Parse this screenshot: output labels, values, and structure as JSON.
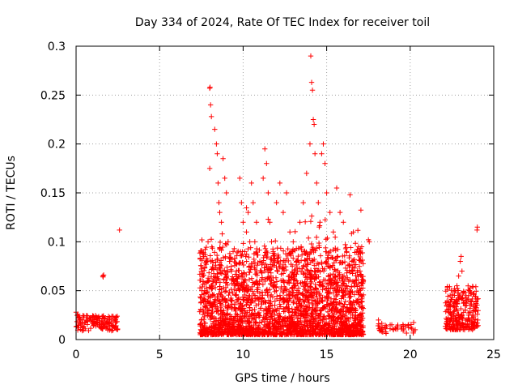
{
  "chart_data": {
    "type": "scatter",
    "title": "Day 334 of 2024, Rate Of TEC Index for receiver toil",
    "xlabel": "GPS time / hours",
    "ylabel": "ROTI / TECUs",
    "xlim": [
      0,
      25
    ],
    "ylim": [
      0,
      0.3
    ],
    "grid": true,
    "marker": "+",
    "xticks": [
      0,
      5,
      10,
      15,
      20,
      25
    ],
    "xtick_labels": [
      "0",
      "5",
      "10",
      "15",
      "20",
      "25"
    ],
    "yticks": [
      0,
      0.05,
      0.1,
      0.15,
      0.2,
      0.25,
      0.3
    ],
    "ytick_labels": [
      "0",
      "0.05",
      "0.1",
      "0.15",
      "0.2",
      "0.25",
      "0.3"
    ],
    "series": [
      {
        "name": "ROTI",
        "color": "#ff0000",
        "points": [
          [
            0.0,
            0.028
          ],
          [
            0.1,
            0.026
          ],
          [
            0.15,
            0.022
          ],
          [
            0.2,
            0.018
          ],
          [
            0.3,
            0.015
          ],
          [
            0.4,
            0.012
          ],
          [
            0.5,
            0.017
          ],
          [
            0.6,
            0.02
          ],
          [
            0.7,
            0.019
          ],
          [
            0.8,
            0.022
          ],
          [
            0.9,
            0.02
          ],
          [
            1.0,
            0.018
          ],
          [
            1.1,
            0.016
          ],
          [
            1.2,
            0.021
          ],
          [
            1.3,
            0.015
          ],
          [
            1.4,
            0.013
          ],
          [
            1.5,
            0.012
          ],
          [
            1.6,
            0.016
          ],
          [
            1.7,
            0.013
          ],
          [
            1.8,
            0.012
          ],
          [
            1.9,
            0.011
          ],
          [
            2.0,
            0.014
          ],
          [
            2.1,
            0.016
          ],
          [
            2.2,
            0.013
          ],
          [
            2.3,
            0.012
          ],
          [
            2.4,
            0.018
          ],
          [
            0.35,
            0.02
          ],
          [
            0.55,
            0.011
          ],
          [
            1.05,
            0.024
          ],
          [
            1.25,
            0.017
          ],
          [
            1.6,
            0.065
          ],
          [
            1.65,
            0.066
          ],
          [
            1.62,
            0.064
          ],
          [
            2.6,
            0.112
          ],
          [
            7.5,
            0.02
          ],
          [
            7.6,
            0.03
          ],
          [
            7.7,
            0.05
          ],
          [
            7.8,
            0.08
          ],
          [
            7.9,
            0.1
          ],
          [
            8.0,
            0.257
          ],
          [
            8.02,
            0.258
          ],
          [
            8.05,
            0.24
          ],
          [
            8.1,
            0.228
          ],
          [
            8.0,
            0.175
          ],
          [
            8.3,
            0.215
          ],
          [
            8.4,
            0.2
          ],
          [
            8.45,
            0.19
          ],
          [
            8.5,
            0.16
          ],
          [
            8.55,
            0.14
          ],
          [
            8.6,
            0.13
          ],
          [
            8.7,
            0.12
          ],
          [
            8.8,
            0.185
          ],
          [
            8.9,
            0.165
          ],
          [
            9.0,
            0.15
          ],
          [
            9.1,
            0.1
          ],
          [
            9.2,
            0.08
          ],
          [
            9.3,
            0.07
          ],
          [
            9.4,
            0.09
          ],
          [
            9.5,
            0.06
          ],
          [
            9.6,
            0.05
          ],
          [
            9.8,
            0.165
          ],
          [
            9.9,
            0.14
          ],
          [
            10.0,
            0.12
          ],
          [
            10.1,
            0.09
          ],
          [
            10.2,
            0.11
          ],
          [
            10.3,
            0.13
          ],
          [
            10.4,
            0.1
          ],
          [
            10.5,
            0.16
          ],
          [
            10.6,
            0.14
          ],
          [
            10.7,
            0.1
          ],
          [
            10.8,
            0.12
          ],
          [
            11.0,
            0.08
          ],
          [
            11.2,
            0.165
          ],
          [
            11.3,
            0.195
          ],
          [
            11.4,
            0.18
          ],
          [
            11.5,
            0.15
          ],
          [
            11.6,
            0.12
          ],
          [
            11.7,
            0.1
          ],
          [
            11.8,
            0.09
          ],
          [
            12.0,
            0.14
          ],
          [
            12.2,
            0.16
          ],
          [
            12.4,
            0.13
          ],
          [
            12.6,
            0.15
          ],
          [
            12.8,
            0.11
          ],
          [
            13.0,
            0.1
          ],
          [
            13.2,
            0.08
          ],
          [
            13.4,
            0.12
          ],
          [
            13.6,
            0.14
          ],
          [
            13.8,
            0.17
          ],
          [
            14.0,
            0.2
          ],
          [
            14.05,
            0.29
          ],
          [
            14.1,
            0.263
          ],
          [
            14.15,
            0.255
          ],
          [
            14.2,
            0.225
          ],
          [
            14.25,
            0.22
          ],
          [
            14.3,
            0.19
          ],
          [
            14.4,
            0.16
          ],
          [
            14.5,
            0.14
          ],
          [
            14.6,
            0.12
          ],
          [
            14.7,
            0.19
          ],
          [
            14.8,
            0.2
          ],
          [
            14.9,
            0.18
          ],
          [
            15.0,
            0.15
          ],
          [
            15.2,
            0.13
          ],
          [
            15.4,
            0.11
          ],
          [
            15.6,
            0.155
          ],
          [
            15.8,
            0.13
          ],
          [
            16.0,
            0.12
          ],
          [
            16.2,
            0.09
          ],
          [
            16.4,
            0.148
          ],
          [
            16.6,
            0.11
          ],
          [
            16.8,
            0.09
          ],
          [
            17.0,
            0.07
          ],
          [
            17.2,
            0.06
          ],
          [
            17.5,
            0.102
          ],
          [
            17.55,
            0.1
          ],
          [
            18.1,
            0.02
          ],
          [
            18.3,
            0.01
          ],
          [
            18.5,
            0.012
          ],
          [
            18.8,
            0.015
          ],
          [
            19.0,
            0.01
          ],
          [
            19.2,
            0.013
          ],
          [
            19.5,
            0.011
          ],
          [
            19.9,
            0.012
          ],
          [
            20.1,
            0.011
          ],
          [
            20.3,
            0.01
          ],
          [
            22.2,
            0.03
          ],
          [
            22.3,
            0.038
          ],
          [
            22.4,
            0.035
          ],
          [
            22.5,
            0.025
          ],
          [
            22.6,
            0.02
          ],
          [
            22.7,
            0.05
          ],
          [
            22.8,
            0.055
          ],
          [
            22.9,
            0.065
          ],
          [
            23.0,
            0.08
          ],
          [
            23.05,
            0.085
          ],
          [
            23.1,
            0.07
          ],
          [
            23.2,
            0.04
          ],
          [
            23.3,
            0.03
          ],
          [
            23.4,
            0.02
          ],
          [
            23.5,
            0.045
          ],
          [
            23.6,
            0.035
          ],
          [
            23.7,
            0.025
          ],
          [
            23.8,
            0.018
          ],
          [
            23.9,
            0.03
          ],
          [
            24.0,
            0.112
          ],
          [
            24.02,
            0.115
          ],
          [
            24.05,
            0.02
          ]
        ]
      }
    ]
  }
}
